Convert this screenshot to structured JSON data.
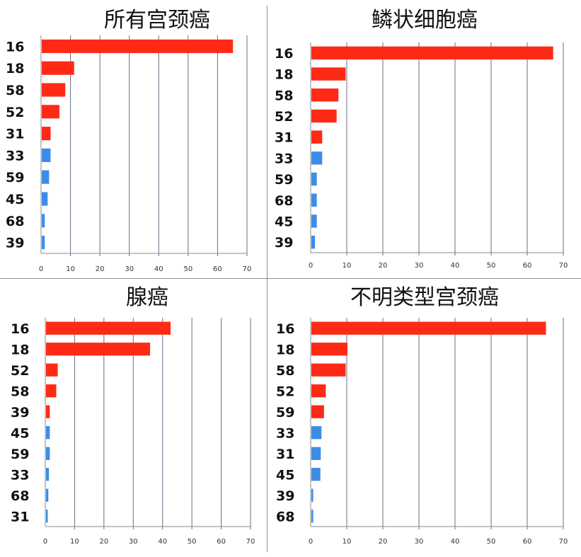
{
  "chart_data": [
    {
      "type": "bar",
      "orientation": "horizontal",
      "title": "所有宫颈癌",
      "categories": [
        "16",
        "18",
        "58",
        "52",
        "31",
        "33",
        "59",
        "45",
        "68",
        "39"
      ],
      "values": [
        65,
        11,
        8,
        6,
        3,
        3,
        2.5,
        2,
        1,
        1
      ],
      "bar_colors": [
        "#ff2a16",
        "#ff2a16",
        "#ff2a16",
        "#ff2a16",
        "#ff2a16",
        "#3b8de8",
        "#3b8de8",
        "#3b8de8",
        "#3b8de8",
        "#3b8de8"
      ],
      "xlim": [
        0,
        70
      ],
      "xticks": [
        0,
        10,
        20,
        30,
        40,
        50,
        60,
        70
      ],
      "grid": true
    },
    {
      "type": "bar",
      "orientation": "horizontal",
      "title": "鳞状细胞癌",
      "categories": [
        "16",
        "18",
        "58",
        "52",
        "31",
        "33",
        "59",
        "68",
        "45",
        "39"
      ],
      "values": [
        67,
        9.5,
        7.5,
        7,
        3,
        3,
        1.5,
        1.5,
        1.5,
        1
      ],
      "bar_colors": [
        "#ff2a16",
        "#ff2a16",
        "#ff2a16",
        "#ff2a16",
        "#ff2a16",
        "#3b8de8",
        "#3b8de8",
        "#3b8de8",
        "#3b8de8",
        "#3b8de8"
      ],
      "xlim": [
        0,
        70
      ],
      "xticks": [
        0,
        10,
        20,
        30,
        40,
        50,
        60,
        70
      ],
      "grid": true
    },
    {
      "type": "bar",
      "orientation": "horizontal",
      "title": "腺癌",
      "categories": [
        "16",
        "18",
        "52",
        "58",
        "39",
        "45",
        "59",
        "33",
        "68",
        "31"
      ],
      "values": [
        42.5,
        35.5,
        4,
        3.5,
        1.3,
        1.3,
        1.3,
        1,
        0.8,
        0.6
      ],
      "bar_colors": [
        "#ff2a16",
        "#ff2a16",
        "#ff2a16",
        "#ff2a16",
        "#ff2a16",
        "#3b8de8",
        "#3b8de8",
        "#3b8de8",
        "#3b8de8",
        "#3b8de8"
      ],
      "xlim": [
        0,
        70
      ],
      "xticks": [
        0,
        10,
        20,
        30,
        40,
        50,
        60,
        70
      ],
      "grid": true
    },
    {
      "type": "bar",
      "orientation": "horizontal",
      "title": "不明类型宫颈癌",
      "categories": [
        "16",
        "18",
        "58",
        "52",
        "59",
        "33",
        "31",
        "45",
        "39",
        "68"
      ],
      "values": [
        65,
        10,
        9.5,
        4,
        3.5,
        2.8,
        2.6,
        2.5,
        0.5,
        0.5
      ],
      "bar_colors": [
        "#ff2a16",
        "#ff2a16",
        "#ff2a16",
        "#ff2a16",
        "#ff2a16",
        "#3b8de8",
        "#3b8de8",
        "#3b8de8",
        "#3b8de8",
        "#3b8de8"
      ],
      "xlim": [
        0,
        70
      ],
      "xticks": [
        0,
        10,
        20,
        30,
        40,
        50,
        60,
        70
      ],
      "grid": true
    }
  ]
}
